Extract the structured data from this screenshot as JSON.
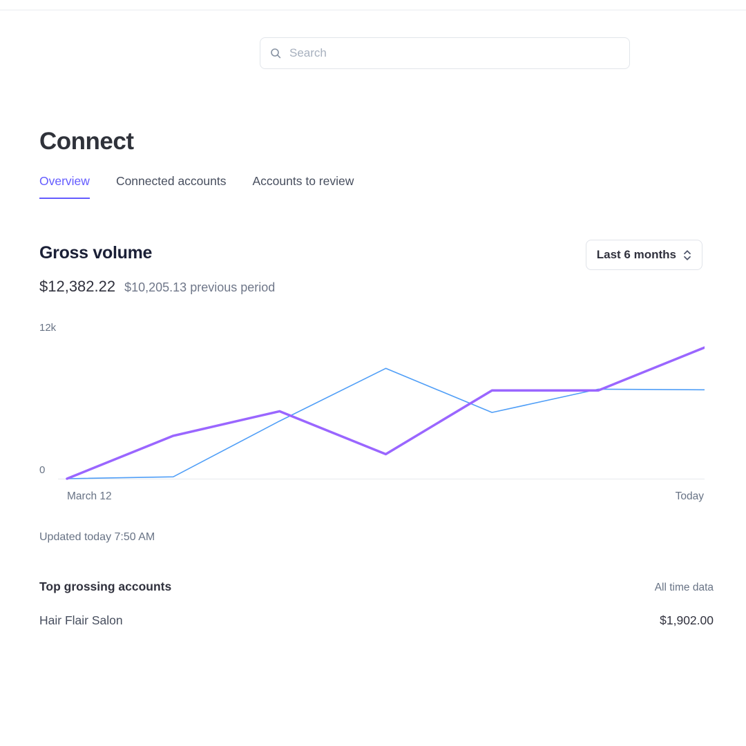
{
  "topbar": {
    "search_placeholder": "Search"
  },
  "page": {
    "title": "Connect"
  },
  "tabs": [
    {
      "label": "Overview",
      "active": true
    },
    {
      "label": "Connected accounts",
      "active": false
    },
    {
      "label": "Accounts to review",
      "active": false
    }
  ],
  "gross_volume": {
    "title": "Gross volume",
    "period_selector": "Last 6 months",
    "amount": "$12,382.22",
    "previous": "$10,205.13 previous period",
    "updated": "Updated today 7:50 AM"
  },
  "chart_data": {
    "type": "line",
    "x": [
      0,
      1,
      2,
      3,
      4,
      5,
      6
    ],
    "x_tick_labels": [
      "March 12",
      "Today"
    ],
    "ylim": [
      0,
      12000
    ],
    "y_tick_labels": [
      "12k",
      "0"
    ],
    "grid": false,
    "legend": "none",
    "series": [
      {
        "name": "current-period",
        "color": "#9a66ff",
        "width": 3.5,
        "values": [
          0,
          3500,
          5500,
          2000,
          7200,
          7200,
          10700
        ]
      },
      {
        "name": "previous-period",
        "color": "#4f9ef7",
        "width": 1.6,
        "values": [
          0,
          150,
          4700,
          9000,
          5400,
          7300,
          7250
        ]
      }
    ]
  },
  "top_grossing": {
    "title": "Top grossing accounts",
    "meta": "All time data",
    "rows": [
      {
        "name": "Hair Flair Salon",
        "amount": "$1,902.00"
      }
    ]
  },
  "colors": {
    "accent": "#635bff",
    "chart_purple": "#9a66ff",
    "chart_blue": "#4f9ef7",
    "baseline": "#e6e9ed",
    "text_dark": "#30313d",
    "text_gray": "#687385"
  }
}
